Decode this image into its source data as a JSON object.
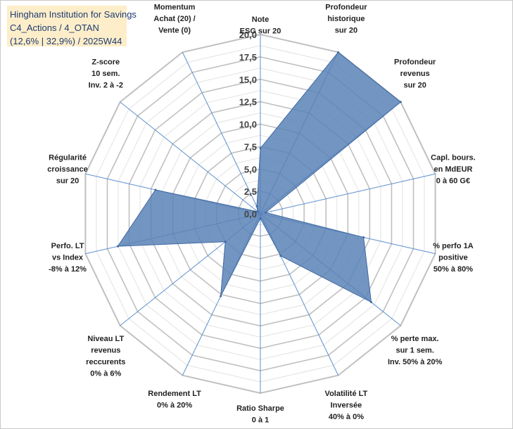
{
  "title": {
    "line1": "Hingham Institution for Savings",
    "line2": "C4_Actions / 4_OTAN",
    "line3": "(12,6% | 32,9%) / 2025W44"
  },
  "colors": {
    "fill": "#5b83b6",
    "stroke": "#3f6aa3",
    "grid": "#c0c0c0",
    "axis": "#5b8fd0",
    "title_bg": "#fdeec9",
    "title_text": "#1f3a73"
  },
  "chart_data": {
    "type": "radar",
    "ylim": [
      0,
      20
    ],
    "ticks": [
      "0,0",
      "2,5",
      "5,0",
      "7,5",
      "10,0",
      "12,5",
      "15,0",
      "17,5",
      "20,0"
    ],
    "categories": [
      [
        "Note",
        "ESG sur 20"
      ],
      [
        "Profondeur",
        "historique",
        "sur 20"
      ],
      [
        "Profondeur",
        "revenus",
        "sur 20"
      ],
      [
        "Capl. bours.",
        "en MdEUR",
        "0 à 60 G€"
      ],
      [
        "% perfo 1A",
        "positive",
        "50% à 80%"
      ],
      [
        "% perte max.",
        "sur 1 sem.",
        "Inv. 50% à 20%"
      ],
      [
        "Volatilité LT",
        "Inversée",
        "40% à 0%"
      ],
      [
        "Ratio Sharpe",
        "0 à 1"
      ],
      [
        "Rendement LT",
        "0% à 20%"
      ],
      [
        "Niveau LT",
        "revenus",
        "reccurents",
        "0% à 6%"
      ],
      [
        "Perfo. LT",
        "vs Index",
        "-8% à 12%"
      ],
      [
        "Régularité",
        "croissance",
        "sur 20"
      ],
      [
        "Z-score",
        "10 sem.",
        "Inv. 2 à -2"
      ],
      [
        "Momentum",
        "Achat (20) /",
        "Vente (0)"
      ]
    ],
    "series": [
      {
        "name": "Hingham Institution for Savings",
        "values": [
          7.3,
          20,
          20,
          0.6,
          11.8,
          15.8,
          5.2,
          0.5,
          10.2,
          5.0,
          16.3,
          12.0,
          0.4,
          0.9
        ]
      }
    ]
  }
}
